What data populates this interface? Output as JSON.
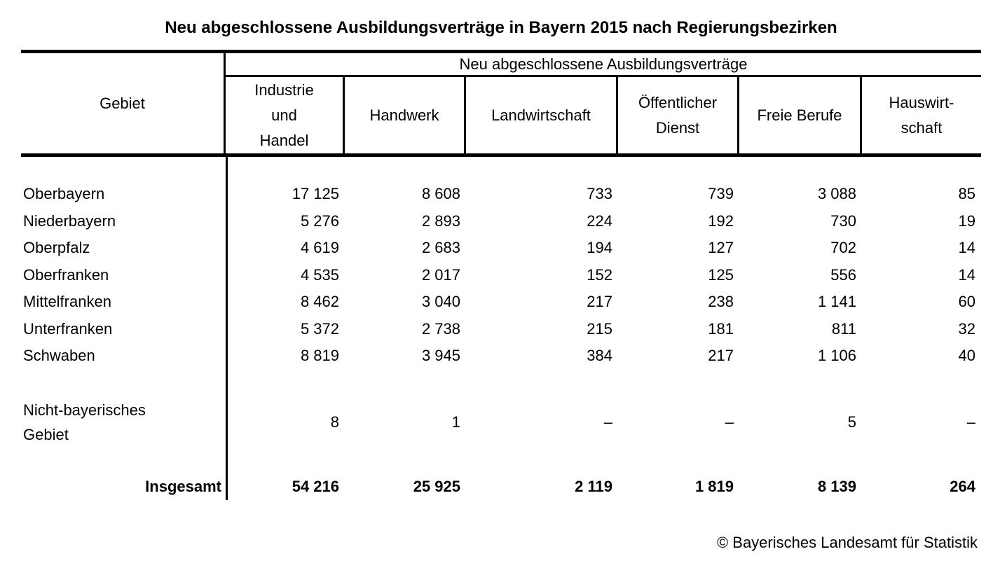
{
  "page_title": "Neu abgeschlossene Ausbildungsverträge in Bayern 2015 nach Regierungsbezirken",
  "table": {
    "corner_header": "Gebiet",
    "group_header": "Neu abgeschlossene Ausbildungsverträge",
    "column_headers": [
      "Industrie\nund\nHandel",
      "Handwerk",
      "Landwirtschaft",
      "Öffentlicher\nDienst",
      "Freie Berufe",
      "Hauswirt-\nschaft"
    ],
    "rows": [
      {
        "gebiet": "Oberbayern",
        "values": [
          "17 125",
          "8 608",
          "733",
          "739",
          "3 088",
          "85"
        ]
      },
      {
        "gebiet": "Niederbayern",
        "values": [
          "5 276",
          "2 893",
          "224",
          "192",
          "730",
          "19"
        ]
      },
      {
        "gebiet": "Oberpfalz",
        "values": [
          "4 619",
          "2 683",
          "194",
          "127",
          "702",
          "14"
        ]
      },
      {
        "gebiet": "Oberfranken",
        "values": [
          "4 535",
          "2 017",
          "152",
          "125",
          "556",
          "14"
        ]
      },
      {
        "gebiet": "Mittelfranken",
        "values": [
          "8 462",
          "3 040",
          "217",
          "238",
          "1 141",
          "60"
        ]
      },
      {
        "gebiet": "Unterfranken",
        "values": [
          "5 372",
          "2 738",
          "215",
          "181",
          "811",
          "32"
        ]
      },
      {
        "gebiet": "Schwaben",
        "values": [
          "8 819",
          "3 945",
          "384",
          "217",
          "1 106",
          "40"
        ]
      }
    ],
    "special_row": {
      "gebiet": "Nicht-bayerisches\nGebiet",
      "values": [
        "8",
        "1",
        "–",
        "–",
        "5",
        "–"
      ]
    },
    "total_row": {
      "label": "Insgesamt",
      "values": [
        "54 216",
        "25 925",
        "2 119",
        "1 819",
        "8 139",
        "264"
      ]
    }
  },
  "footer": {
    "copyright": "© Bayerisches Landesamt für Statistik"
  },
  "colors": {
    "background": "#ffffff",
    "text": "#000000",
    "rule": "#000000"
  },
  "chart_data": {
    "type": "table",
    "title": "Neu abgeschlossene Ausbildungsverträge in Bayern 2015 nach Regierungsbezirken",
    "row_header": "Gebiet",
    "column_group": "Neu abgeschlossene Ausbildungsverträge",
    "columns": [
      "Industrie und Handel",
      "Handwerk",
      "Landwirtschaft",
      "Öffentlicher Dienst",
      "Freie Berufe",
      "Hauswirtschaft"
    ],
    "rows": [
      {
        "gebiet": "Oberbayern",
        "values": [
          17125,
          8608,
          733,
          739,
          3088,
          85
        ]
      },
      {
        "gebiet": "Niederbayern",
        "values": [
          5276,
          2893,
          224,
          192,
          730,
          19
        ]
      },
      {
        "gebiet": "Oberpfalz",
        "values": [
          4619,
          2683,
          194,
          127,
          702,
          14
        ]
      },
      {
        "gebiet": "Oberfranken",
        "values": [
          4535,
          2017,
          152,
          125,
          556,
          14
        ]
      },
      {
        "gebiet": "Mittelfranken",
        "values": [
          8462,
          3040,
          217,
          238,
          1141,
          60
        ]
      },
      {
        "gebiet": "Unterfranken",
        "values": [
          5372,
          2738,
          215,
          181,
          811,
          32
        ]
      },
      {
        "gebiet": "Schwaben",
        "values": [
          8819,
          3945,
          384,
          217,
          1106,
          40
        ]
      },
      {
        "gebiet": "Nicht-bayerisches Gebiet",
        "values": [
          8,
          1,
          null,
          null,
          5,
          null
        ]
      },
      {
        "gebiet": "Insgesamt",
        "values": [
          54216,
          25925,
          2119,
          1819,
          8139,
          264
        ]
      }
    ],
    "missing_value_symbol": "–",
    "source": "© Bayerisches Landesamt für Statistik"
  }
}
